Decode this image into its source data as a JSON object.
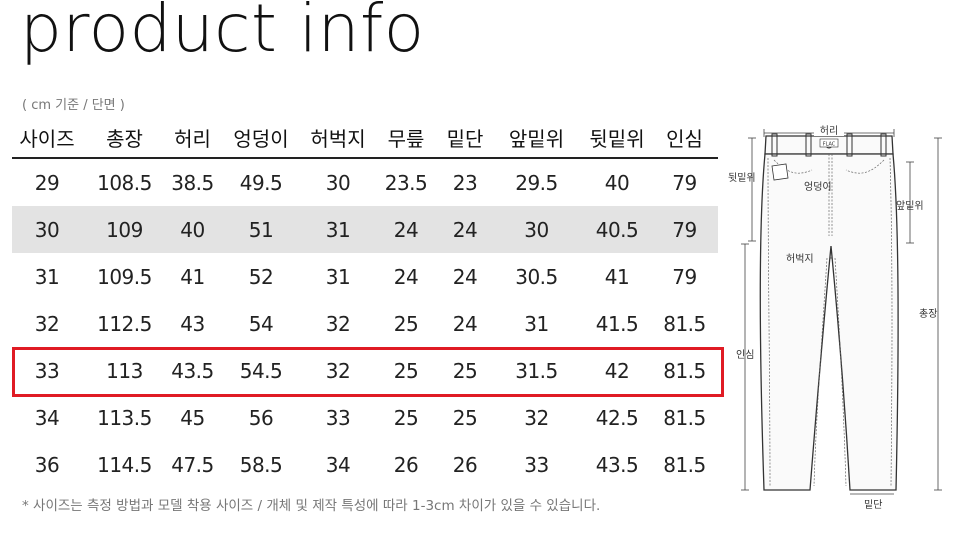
{
  "title": "product info",
  "unit_note": "( cm 기준 / 단면 )",
  "table": {
    "headers": [
      "사이즈",
      "총장",
      "허리",
      "엉덩이",
      "허벅지",
      "무릎",
      "밑단",
      "앞밑위",
      "뒷밑위",
      "인심"
    ],
    "rows": [
      [
        "29",
        "108.5",
        "38.5",
        "49.5",
        "30",
        "23.5",
        "23",
        "29.5",
        "40",
        "79"
      ],
      [
        "30",
        "109",
        "40",
        "51",
        "31",
        "24",
        "24",
        "30",
        "40.5",
        "79"
      ],
      [
        "31",
        "109.5",
        "41",
        "52",
        "31",
        "24",
        "24",
        "30.5",
        "41",
        "79"
      ],
      [
        "32",
        "112.5",
        "43",
        "54",
        "32",
        "25",
        "24",
        "31",
        "41.5",
        "81.5"
      ],
      [
        "33",
        "113",
        "43.5",
        "54.5",
        "32",
        "25",
        "25",
        "31.5",
        "42",
        "81.5"
      ],
      [
        "34",
        "113.5",
        "45",
        "56",
        "33",
        "25",
        "25",
        "32",
        "42.5",
        "81.5"
      ],
      [
        "36",
        "114.5",
        "47.5",
        "58.5",
        "34",
        "26",
        "26",
        "33",
        "43.5",
        "81.5"
      ]
    ],
    "shaded_row_index": 1,
    "highlighted_row_index": 4
  },
  "footnote": "* 사이즈는 측정 방법과 모델 착용 사이즈 / 개체 및 제작 특성에 따라 1-3cm 차이가 있을 수 있습니다.",
  "diagram": {
    "labels": {
      "waist": "허리",
      "back_rise": "뒷밑위",
      "hip": "엉덩이",
      "front_rise": "앞밑위",
      "thigh": "허벅지",
      "total_length": "총장",
      "inseam": "인심",
      "hem": "밑단",
      "tag": "FLAC"
    }
  },
  "colors": {
    "highlight": "#e01b24",
    "shade": "#e3e3e3"
  }
}
